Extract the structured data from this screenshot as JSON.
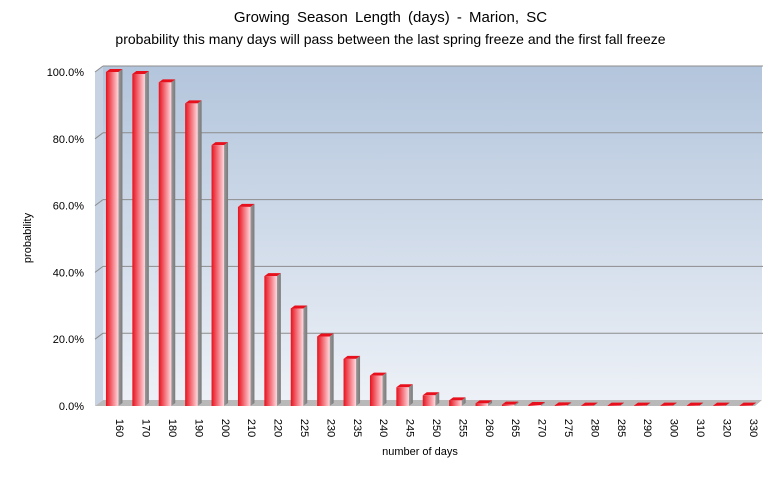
{
  "chart_data": {
    "type": "bar",
    "title": "Growing  Season  Length  (days) - Marion,  SC",
    "subtitle": "probability this many days will pass between the last spring freeze and the first fall freeze",
    "xlabel": "number of days",
    "ylabel": "probability",
    "categories": [
      "160",
      "170",
      "180",
      "190",
      "200",
      "210",
      "220",
      "225",
      "230",
      "235",
      "240",
      "245",
      "250",
      "255",
      "260",
      "265",
      "270",
      "275",
      "280",
      "285",
      "290",
      "300",
      "310",
      "320",
      "330"
    ],
    "values": [
      100.0,
      99.4,
      96.9,
      90.6,
      78.1,
      59.6,
      38.9,
      29.2,
      20.8,
      14.1,
      9.1,
      5.6,
      3.2,
      1.7,
      0.8,
      0.4,
      0.3,
      0.2,
      0.1,
      0.1,
      0.1,
      0.1,
      0.1,
      0.1,
      0.1
    ],
    "ylim": [
      0,
      100
    ],
    "yticks": [
      "0.0%",
      "20.0%",
      "40.0%",
      "60.0%",
      "80.0%",
      "100.0%"
    ],
    "grid": true,
    "colors": {
      "bar": "#e8101c",
      "bar_light": "#ffd8de",
      "plot_top": "#b3c5dc",
      "plot_bottom": "#edf1f7",
      "grid": "#8c8c8c"
    }
  }
}
